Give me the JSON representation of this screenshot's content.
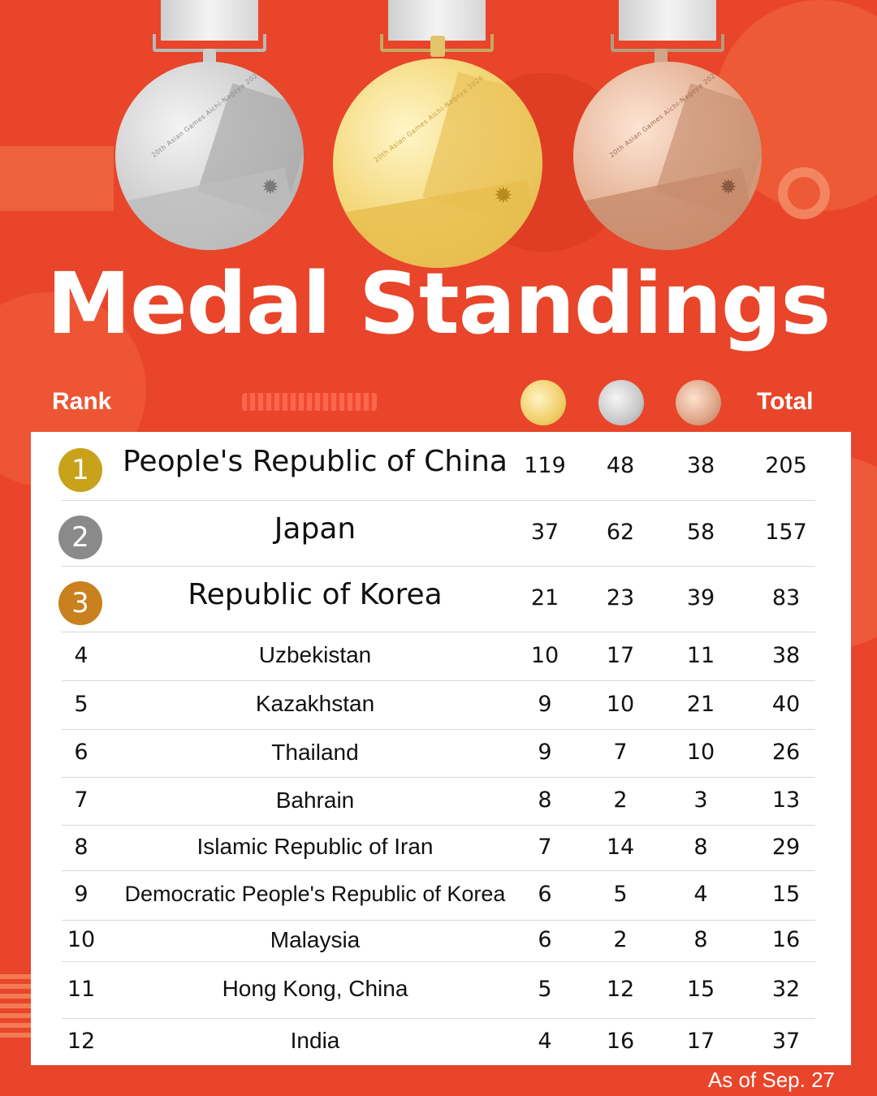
{
  "title": "Medal Standings",
  "header": {
    "rank_label": "Rank",
    "total_label": "Total",
    "medal_icons": [
      "gold-medal-icon",
      "silver-medal-icon",
      "bronze-medal-icon"
    ]
  },
  "medal_engraving": "20th Asian Games Aichi-Nagoya 2026",
  "colors": {
    "background": "#e8452a",
    "gold_badge": "#c8a21a",
    "silver_badge": "#8a8a8a",
    "bronze_badge": "#c9801e"
  },
  "rows": [
    {
      "rank": "1",
      "country": "People's Republic of China",
      "gold": "119",
      "silver": "48",
      "bronze": "38",
      "total": "205"
    },
    {
      "rank": "2",
      "country": "Japan",
      "gold": "37",
      "silver": "62",
      "bronze": "58",
      "total": "157"
    },
    {
      "rank": "3",
      "country": "Republic of Korea",
      "gold": "21",
      "silver": "23",
      "bronze": "39",
      "total": "83"
    },
    {
      "rank": "4",
      "country": "Uzbekistan",
      "gold": "10",
      "silver": "17",
      "bronze": "11",
      "total": "38"
    },
    {
      "rank": "5",
      "country": "Kazakhstan",
      "gold": "9",
      "silver": "10",
      "bronze": "21",
      "total": "40"
    },
    {
      "rank": "6",
      "country": "Thailand",
      "gold": "9",
      "silver": "7",
      "bronze": "10",
      "total": "26"
    },
    {
      "rank": "7",
      "country": "Bahrain",
      "gold": "8",
      "silver": "2",
      "bronze": "3",
      "total": "13"
    },
    {
      "rank": "8",
      "country": "Islamic Republic of Iran",
      "gold": "7",
      "silver": "14",
      "bronze": "8",
      "total": "29"
    },
    {
      "rank": "9",
      "country": "Democratic People's Republic of Korea",
      "gold": "6",
      "silver": "5",
      "bronze": "4",
      "total": "15"
    },
    {
      "rank": "10",
      "country": "Malaysia",
      "gold": "6",
      "silver": "2",
      "bronze": "8",
      "total": "16"
    },
    {
      "rank": "11",
      "country": "Hong Kong, China",
      "gold": "5",
      "silver": "12",
      "bronze": "15",
      "total": "32"
    },
    {
      "rank": "12",
      "country": "India",
      "gold": "4",
      "silver": "16",
      "bronze": "17",
      "total": "37"
    }
  ],
  "as_of": "As of Sep. 27"
}
